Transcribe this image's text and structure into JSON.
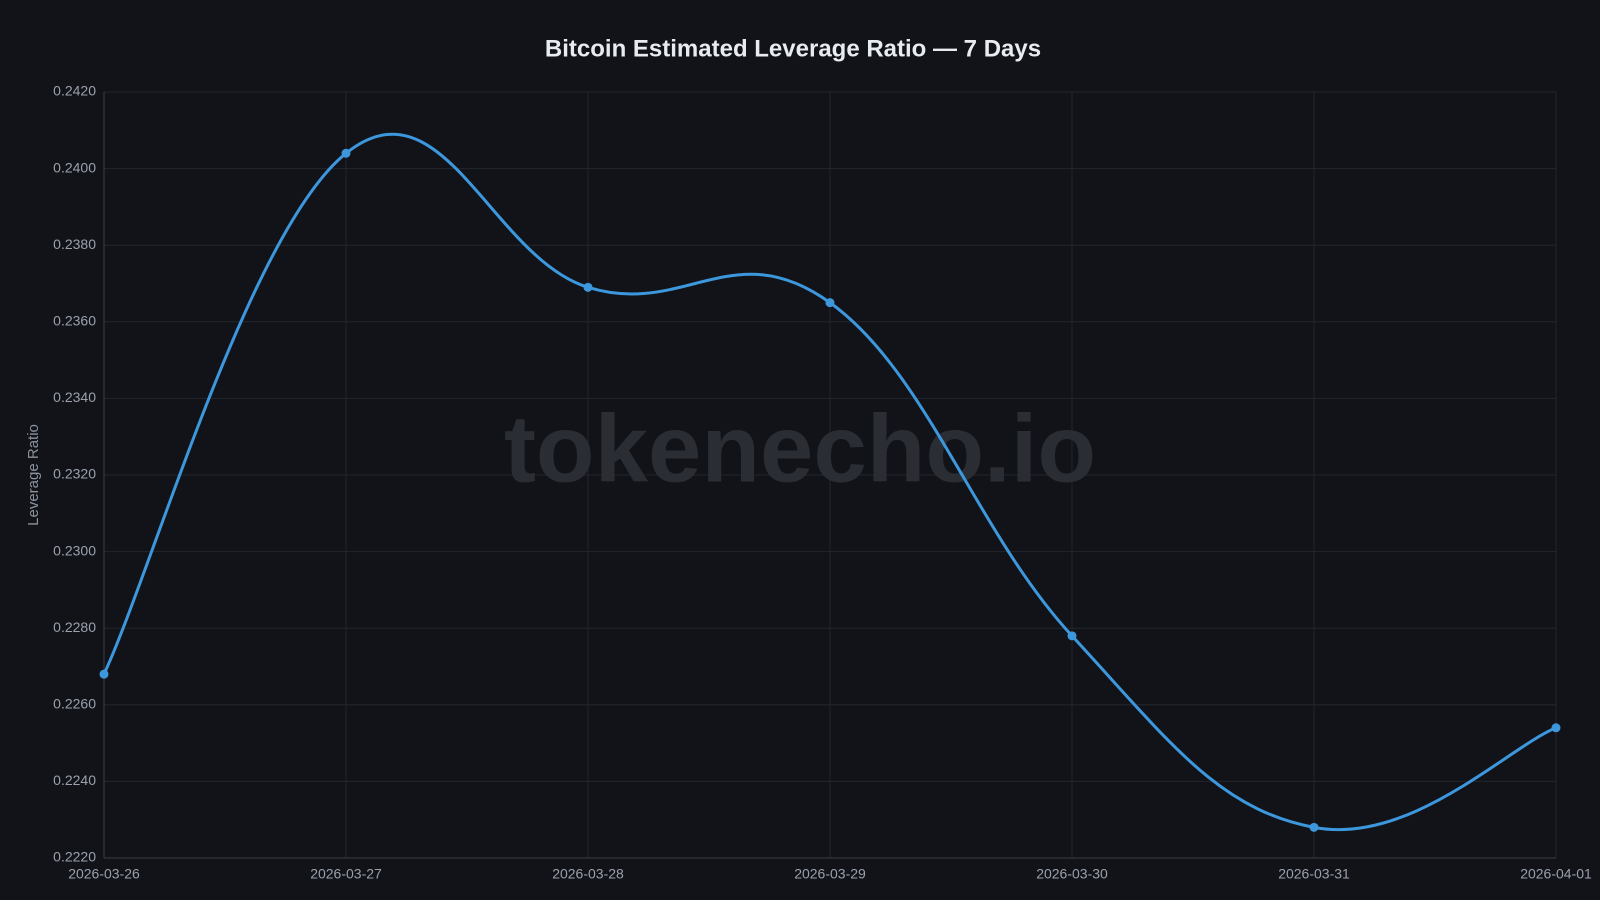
{
  "chart_data": {
    "type": "line",
    "title": "Bitcoin Estimated Leverage Ratio — 7 Days",
    "watermark": "tokenecho.io",
    "y_label": "Leverage Ratio",
    "x": [
      "2026-03-26",
      "2026-03-27",
      "2026-03-28",
      "2026-03-29",
      "2026-03-30",
      "2026-03-31",
      "2026-04-01"
    ],
    "series": [
      {
        "name": "Leverage Ratio",
        "color": "#3d97dc",
        "values": [
          0.2268,
          0.2404,
          0.2369,
          0.2365,
          0.2278,
          0.2228,
          0.2254
        ]
      }
    ],
    "ylim": [
      0.222,
      0.242
    ],
    "yticks": [
      {
        "value": 0.222,
        "label": "0.2220"
      },
      {
        "value": 0.224,
        "label": "0.2240"
      },
      {
        "value": 0.226,
        "label": "0.2260"
      },
      {
        "value": 0.228,
        "label": "0.2280"
      },
      {
        "value": 0.23,
        "label": "0.2300"
      },
      {
        "value": 0.232,
        "label": "0.2320"
      },
      {
        "value": 0.234,
        "label": "0.2340"
      },
      {
        "value": 0.236,
        "label": "0.2360"
      },
      {
        "value": 0.238,
        "label": "0.2380"
      },
      {
        "value": 0.24,
        "label": "0.2400"
      },
      {
        "value": 0.242,
        "label": "0.2420"
      }
    ],
    "grid": true
  }
}
